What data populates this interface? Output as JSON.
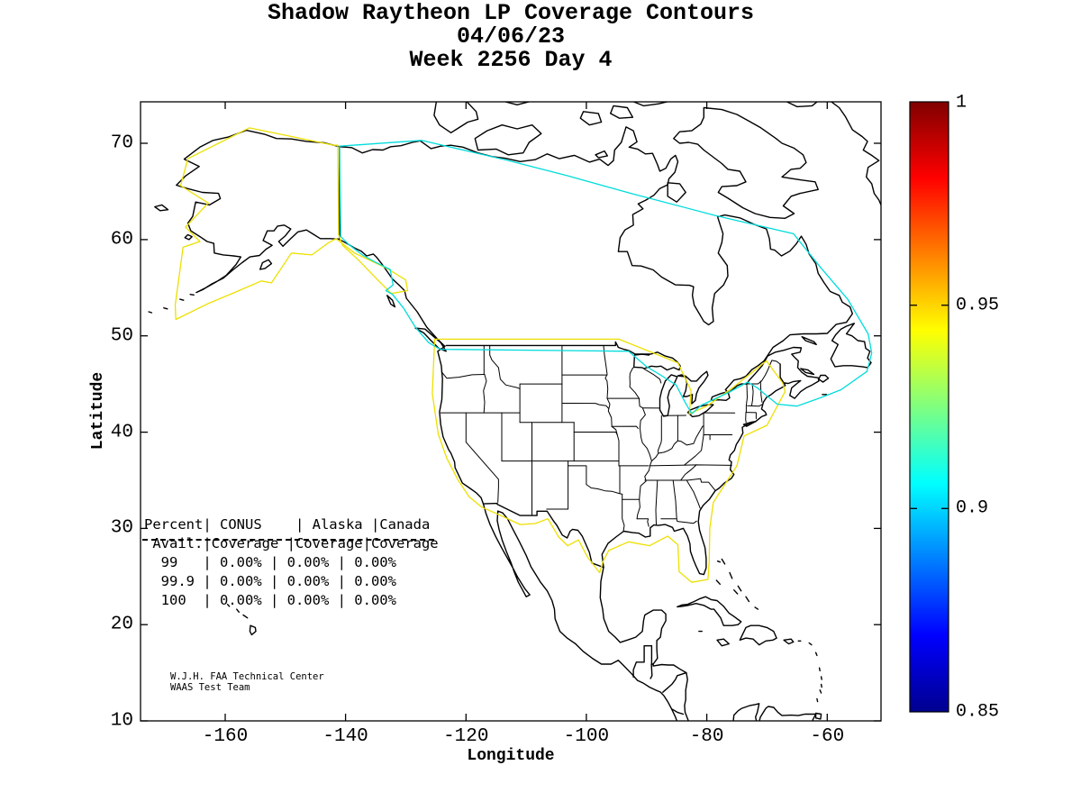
{
  "figure": {
    "title_line1": "Shadow Raytheon LP Coverage Contours",
    "title_line2": "04/06/23",
    "title_line3": "Week 2256 Day 4"
  },
  "axes": {
    "xlabel": "Longitude",
    "ylabel": "Latitude",
    "x_tick_labels": [
      "-160",
      "-140",
      "-120",
      "-100",
      "-80",
      "-60"
    ],
    "y_tick_labels": [
      "70",
      "60",
      "50",
      "40",
      "30",
      "20",
      "10"
    ]
  },
  "colorbar": {
    "tick_labels": [
      "1",
      "0.95",
      "0.9",
      "0.85"
    ]
  },
  "coverage_table": {
    "text": "Percent| CONUS    | Alaska |Canada\n Avail.|Coverage |Coverage|Coverage\n  99   | 0.00% | 0.00% | 0.00%\n  99.9 | 0.00% | 0.00% | 0.00%\n  100  | 0.00% | 0.00% | 0.00%",
    "columns": [
      "Percent Avail.",
      "CONUS Coverage",
      "Alaska Coverage",
      "Canada Coverage"
    ],
    "rows": [
      [
        "99",
        "0.00%",
        "0.00%",
        "0.00%"
      ],
      [
        "99.9",
        "0.00%",
        "0.00%",
        "0.00%"
      ],
      [
        "100",
        "0.00%",
        "0.00%",
        "0.00%"
      ]
    ]
  },
  "credit": {
    "line1": "W.J.H. FAA Technical Center",
    "line2": "WAAS Test Team"
  },
  "colors": {
    "contour_yellow": "#EDE000",
    "contour_cyan": "#00DCDC",
    "coastline": "#000000",
    "background": "#FFFFFF"
  },
  "chart_data": {
    "type": "heatmap",
    "subtype": "geographic-coverage-contour-map",
    "title": "Shadow Raytheon LP Coverage Contours",
    "date": "04/06/23",
    "week": 2256,
    "day": 4,
    "xlabel": "Longitude",
    "ylabel": "Latitude",
    "xlim": [
      -174,
      -51
    ],
    "ylim": [
      10,
      74.3
    ],
    "x_ticks": [
      -160,
      -140,
      -120,
      -100,
      -80,
      -60
    ],
    "y_ticks": [
      70,
      60,
      50,
      40,
      30,
      20,
      10
    ],
    "grid": false,
    "region": "North America (Alaska, Canada, CONUS, Mexico, Caribbean)",
    "colorbar": {
      "range": [
        0.85,
        1
      ],
      "tick_values": [
        1,
        0.95,
        0.9,
        0.85
      ],
      "colormap": "jet",
      "position": "right",
      "stops": [
        {
          "offset": 0.0,
          "color": "#00008F"
        },
        {
          "offset": 0.125,
          "color": "#0000FF"
        },
        {
          "offset": 0.375,
          "color": "#00FFFF"
        },
        {
          "offset": 0.625,
          "color": "#FFFF00"
        },
        {
          "offset": 0.875,
          "color": "#FF0000"
        },
        {
          "offset": 1.0,
          "color": "#800000"
        }
      ]
    },
    "contours": [
      {
        "color": "#EDE000",
        "approx_level": 0.95,
        "regions": [
          "Alaska",
          "CONUS"
        ]
      },
      {
        "color": "#00DCDC",
        "approx_level": 0.9,
        "regions": [
          "Alaska-Canada-CONUS outer boundary"
        ]
      }
    ],
    "availability_table": {
      "columns": [
        "Percent Avail.",
        "CONUS Coverage",
        "Alaska Coverage",
        "Canada Coverage"
      ],
      "rows": [
        {
          "percent_avail": "99",
          "conus": "0.00%",
          "alaska": "0.00%",
          "canada": "0.00%"
        },
        {
          "percent_avail": "99.9",
          "conus": "0.00%",
          "alaska": "0.00%",
          "canada": "0.00%"
        },
        {
          "percent_avail": "100",
          "conus": "0.00%",
          "alaska": "0.00%",
          "canada": "0.00%"
        }
      ]
    },
    "annotations": [
      "W.J.H. FAA Technical Center",
      "WAAS Test Team"
    ]
  }
}
